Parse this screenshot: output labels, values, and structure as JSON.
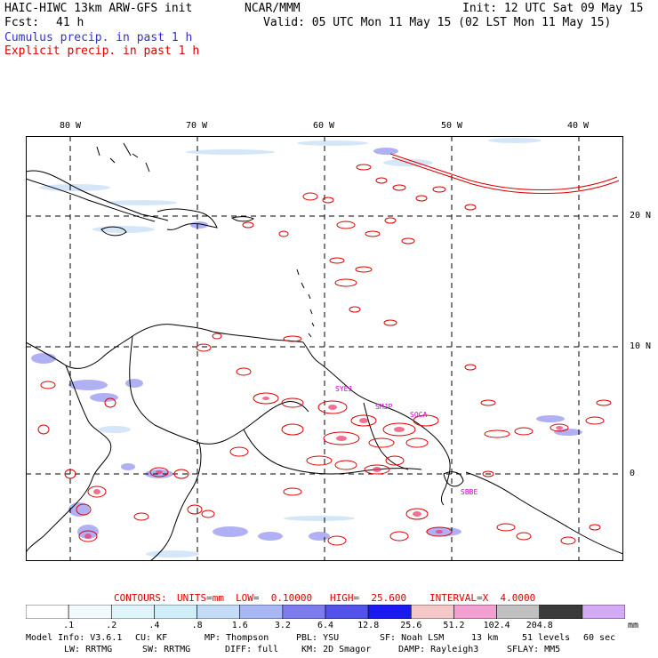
{
  "header": {
    "model_title": "HAIC-HIWC 13km ARW-GFS init",
    "org": "NCAR/MMM",
    "init": "Init: 12 UTC Sat 09 May 15",
    "fcst_label": "Fcst:",
    "fcst_value": "41 h",
    "valid": "Valid: 05 UTC Mon 11 May 15 (02 LST Mon 11 May 15)",
    "cumulus": "Cumulus precip. in past 1 h",
    "explicit": "Explicit precip. in past 1 h",
    "cumulus_color": "#3333cc",
    "explicit_color": "#dd0000"
  },
  "map": {
    "lon_labels": [
      "80 W",
      "70 W",
      "60 W",
      "50 W",
      "40 W"
    ],
    "lat_labels": [
      "20 N",
      "10 N",
      "0"
    ],
    "stations": [
      "SYEJ",
      "SMJP",
      "SOCA",
      "SBBE"
    ],
    "station_color": "#cc00cc"
  },
  "contours": {
    "prefix": "CONTOURS:",
    "units": "UNITS=mm",
    "low": "LOW=  0.10000",
    "high": "HIGH=  25.600",
    "interval": "INTERVAL=X  4.0000",
    "color": "#dd0000"
  },
  "colorbar": {
    "colors": [
      "#ffffff",
      "#f2fafe",
      "#e0f4fb",
      "#d0eef8",
      "#c4dcf6",
      "#a8b6f4",
      "#7c7cee",
      "#5252ea",
      "#1a1af0",
      "#f5c8c8",
      "#f2a0d2",
      "#c0c0c0",
      "#3a3a3a",
      "#d4aaf4"
    ],
    "ticks": [
      ".1",
      ".2",
      ".4",
      ".8",
      "1.6",
      "3.2",
      "6.4",
      "12.8",
      "25.6",
      "51.2",
      "102.4",
      "204.8"
    ],
    "unit": "mm"
  },
  "footer": {
    "line1": [
      "Model Info: V3.6.1",
      "CU: KF",
      "MP: Thompson",
      "PBL: YSU",
      "SF: Noah LSM",
      "13 km",
      "51 levels",
      "60 sec"
    ],
    "line2": [
      "LW: RRTMG",
      "SW: RRTMG",
      "DIFF: full",
      "KM: 2D Smagor",
      "DAMP: Rayleigh3",
      "SFLAY: MM5"
    ]
  }
}
